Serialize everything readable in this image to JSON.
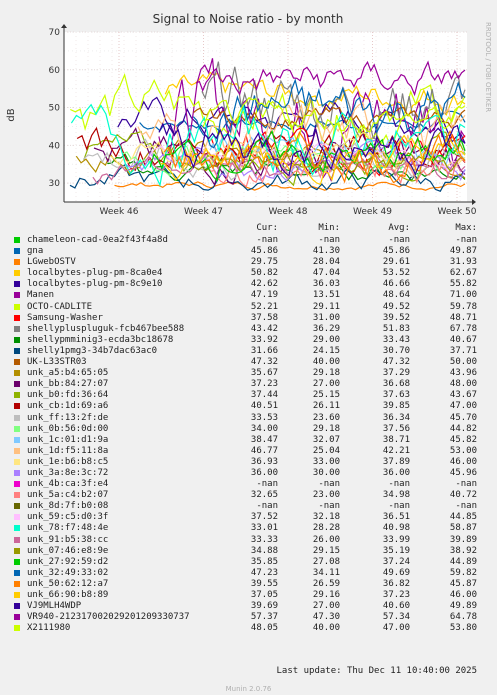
{
  "chart_data": {
    "type": "line",
    "title": "Signal to Noise ratio - by month",
    "ylabel": "dB",
    "side_label": "RRDTOOL / TOBI OETIKER",
    "ylim": [
      25,
      70
    ],
    "y_ticks": [
      "30",
      "40",
      "50",
      "60",
      "70"
    ],
    "x_ticks": [
      "Week 46",
      "Week 47",
      "Week 48",
      "Week 49",
      "Week 50"
    ],
    "grid": true,
    "series": [
      {
        "name": "chameleon-cad-0ea2f43f4a8d",
        "color": "#00cc00",
        "cur": "-nan",
        "min": "-nan",
        "avg": "-nan",
        "max": "-nan"
      },
      {
        "name": "gna",
        "color": "#0066b3",
        "cur": "45.86",
        "min": "41.30",
        "avg": "45.86",
        "max": "49.87"
      },
      {
        "name": "LGwebOSTV",
        "color": "#ff8000",
        "cur": "29.75",
        "min": "28.04",
        "avg": "29.61",
        "max": "31.93"
      },
      {
        "name": "localbytes-plug-pm-8ca0e4",
        "color": "#ffcc00",
        "cur": "50.82",
        "min": "47.04",
        "avg": "53.52",
        "max": "62.67"
      },
      {
        "name": "localbytes-plug-pm-8c9e10",
        "color": "#330099",
        "cur": "42.62",
        "min": "36.03",
        "avg": "46.66",
        "max": "55.82"
      },
      {
        "name": "Manen",
        "color": "#990099",
        "cur": "47.19",
        "min": "13.51",
        "avg": "48.64",
        "max": "71.00"
      },
      {
        "name": "OCTO-CADLITE",
        "color": "#ccff00",
        "cur": "52.21",
        "min": "29.11",
        "avg": "49.52",
        "max": "59.78"
      },
      {
        "name": "Samsung-Washer",
        "color": "#ff0000",
        "cur": "37.58",
        "min": "31.00",
        "avg": "39.52",
        "max": "48.71"
      },
      {
        "name": "shellypluspluguk-fcb467bee588",
        "color": "#808080",
        "cur": "43.42",
        "min": "36.29",
        "avg": "51.83",
        "max": "67.78"
      },
      {
        "name": "shellypmminig3-ecda3bc18678",
        "color": "#008f00",
        "cur": "33.92",
        "min": "29.00",
        "avg": "33.43",
        "max": "40.67"
      },
      {
        "name": "shelly1pmg3-34b7dac63ac0",
        "color": "#00487d",
        "cur": "31.66",
        "min": "24.15",
        "avg": "30.70",
        "max": "37.71"
      },
      {
        "name": "UK-L33STR03",
        "color": "#b35a00",
        "cur": "47.32",
        "min": "40.00",
        "avg": "47.32",
        "max": "50.00"
      },
      {
        "name": "unk_a5:b4:65:05",
        "color": "#b38f00",
        "cur": "35.67",
        "min": "29.18",
        "avg": "37.29",
        "max": "43.96"
      },
      {
        "name": "unk_bb:84:27:07",
        "color": "#6b006b",
        "cur": "37.23",
        "min": "27.00",
        "avg": "36.68",
        "max": "48.00"
      },
      {
        "name": "unk_b0:fd:36:64",
        "color": "#8fb300",
        "cur": "37.44",
        "min": "25.15",
        "avg": "37.63",
        "max": "43.67"
      },
      {
        "name": "unk_cb:1d:69:a6",
        "color": "#b30000",
        "cur": "40.51",
        "min": "26.11",
        "avg": "39.85",
        "max": "47.00"
      },
      {
        "name": "unk_ff:13:2f:de",
        "color": "#bebebe",
        "cur": "33.53",
        "min": "23.60",
        "avg": "36.34",
        "max": "45.70"
      },
      {
        "name": "unk_0b:56:0d:00",
        "color": "#80ff80",
        "cur": "34.00",
        "min": "29.18",
        "avg": "37.56",
        "max": "44.82"
      },
      {
        "name": "unk_1c:01:d1:9a",
        "color": "#80c9ff",
        "cur": "38.47",
        "min": "32.07",
        "avg": "38.71",
        "max": "45.82"
      },
      {
        "name": "unk_1d:f5:11:8a",
        "color": "#ffc080",
        "cur": "46.77",
        "min": "25.04",
        "avg": "42.21",
        "max": "53.00"
      },
      {
        "name": "unk_1e:b6:b8:c5",
        "color": "#ffe680",
        "cur": "36.93",
        "min": "33.00",
        "avg": "37.89",
        "max": "46.00"
      },
      {
        "name": "unk_3a:8e:3c:72",
        "color": "#aa80ff",
        "cur": "36.00",
        "min": "30.00",
        "avg": "36.00",
        "max": "45.96"
      },
      {
        "name": "unk_4b:ca:3f:e4",
        "color": "#ee00cc",
        "cur": "-nan",
        "min": "-nan",
        "avg": "-nan",
        "max": "-nan"
      },
      {
        "name": "unk_5a:c4:b2:07",
        "color": "#ff8080",
        "cur": "32.65",
        "min": "23.00",
        "avg": "34.98",
        "max": "40.72"
      },
      {
        "name": "unk_8d:7f:b0:08",
        "color": "#666600",
        "cur": "-nan",
        "min": "-nan",
        "avg": "-nan",
        "max": "-nan"
      },
      {
        "name": "unk_59:c5:d0:3f",
        "color": "#ffbfff",
        "cur": "37.52",
        "min": "32.18",
        "avg": "36.51",
        "max": "44.85"
      },
      {
        "name": "unk_78:f7:48:4e",
        "color": "#00ffcc",
        "cur": "33.01",
        "min": "28.28",
        "avg": "40.98",
        "max": "58.87"
      },
      {
        "name": "unk_91:b5:38:cc",
        "color": "#cc6699",
        "cur": "33.33",
        "min": "26.00",
        "avg": "33.99",
        "max": "39.89"
      },
      {
        "name": "unk_07:46:e8:9e",
        "color": "#999900",
        "cur": "34.88",
        "min": "29.15",
        "avg": "35.19",
        "max": "38.92"
      },
      {
        "name": "unk_27:92:59:d2",
        "color": "#00cc00",
        "cur": "35.85",
        "min": "27.08",
        "avg": "37.24",
        "max": "44.89"
      },
      {
        "name": "unk_32:49:33:02",
        "color": "#0066b3",
        "cur": "47.23",
        "min": "34.11",
        "avg": "49.69",
        "max": "59.82"
      },
      {
        "name": "unk_50:62:12:a7",
        "color": "#ff8000",
        "cur": "39.55",
        "min": "26.59",
        "avg": "36.82",
        "max": "45.87"
      },
      {
        "name": "unk_66:90:b8:89",
        "color": "#ffcc00",
        "cur": "37.05",
        "min": "29.16",
        "avg": "37.23",
        "max": "46.00"
      },
      {
        "name": "VJ9MLH4WDP",
        "color": "#330099",
        "cur": "39.69",
        "min": "27.00",
        "avg": "40.60",
        "max": "49.89"
      },
      {
        "name": "VR940-212317002029201209330737",
        "color": "#990099",
        "cur": "57.37",
        "min": "47.30",
        "avg": "57.34",
        "max": "64.78"
      },
      {
        "name": "X2111980",
        "color": "#ccff00",
        "cur": "48.05",
        "min": "40.00",
        "avg": "47.00",
        "max": "53.80"
      }
    ]
  },
  "legend_header": {
    "cur": "Cur:",
    "min": "Min:",
    "avg": "Avg:",
    "max": "Max:"
  },
  "last_update": "Last update: Thu Dec 11 10:40:00 2025",
  "munin_version": "Munin 2.0.76"
}
